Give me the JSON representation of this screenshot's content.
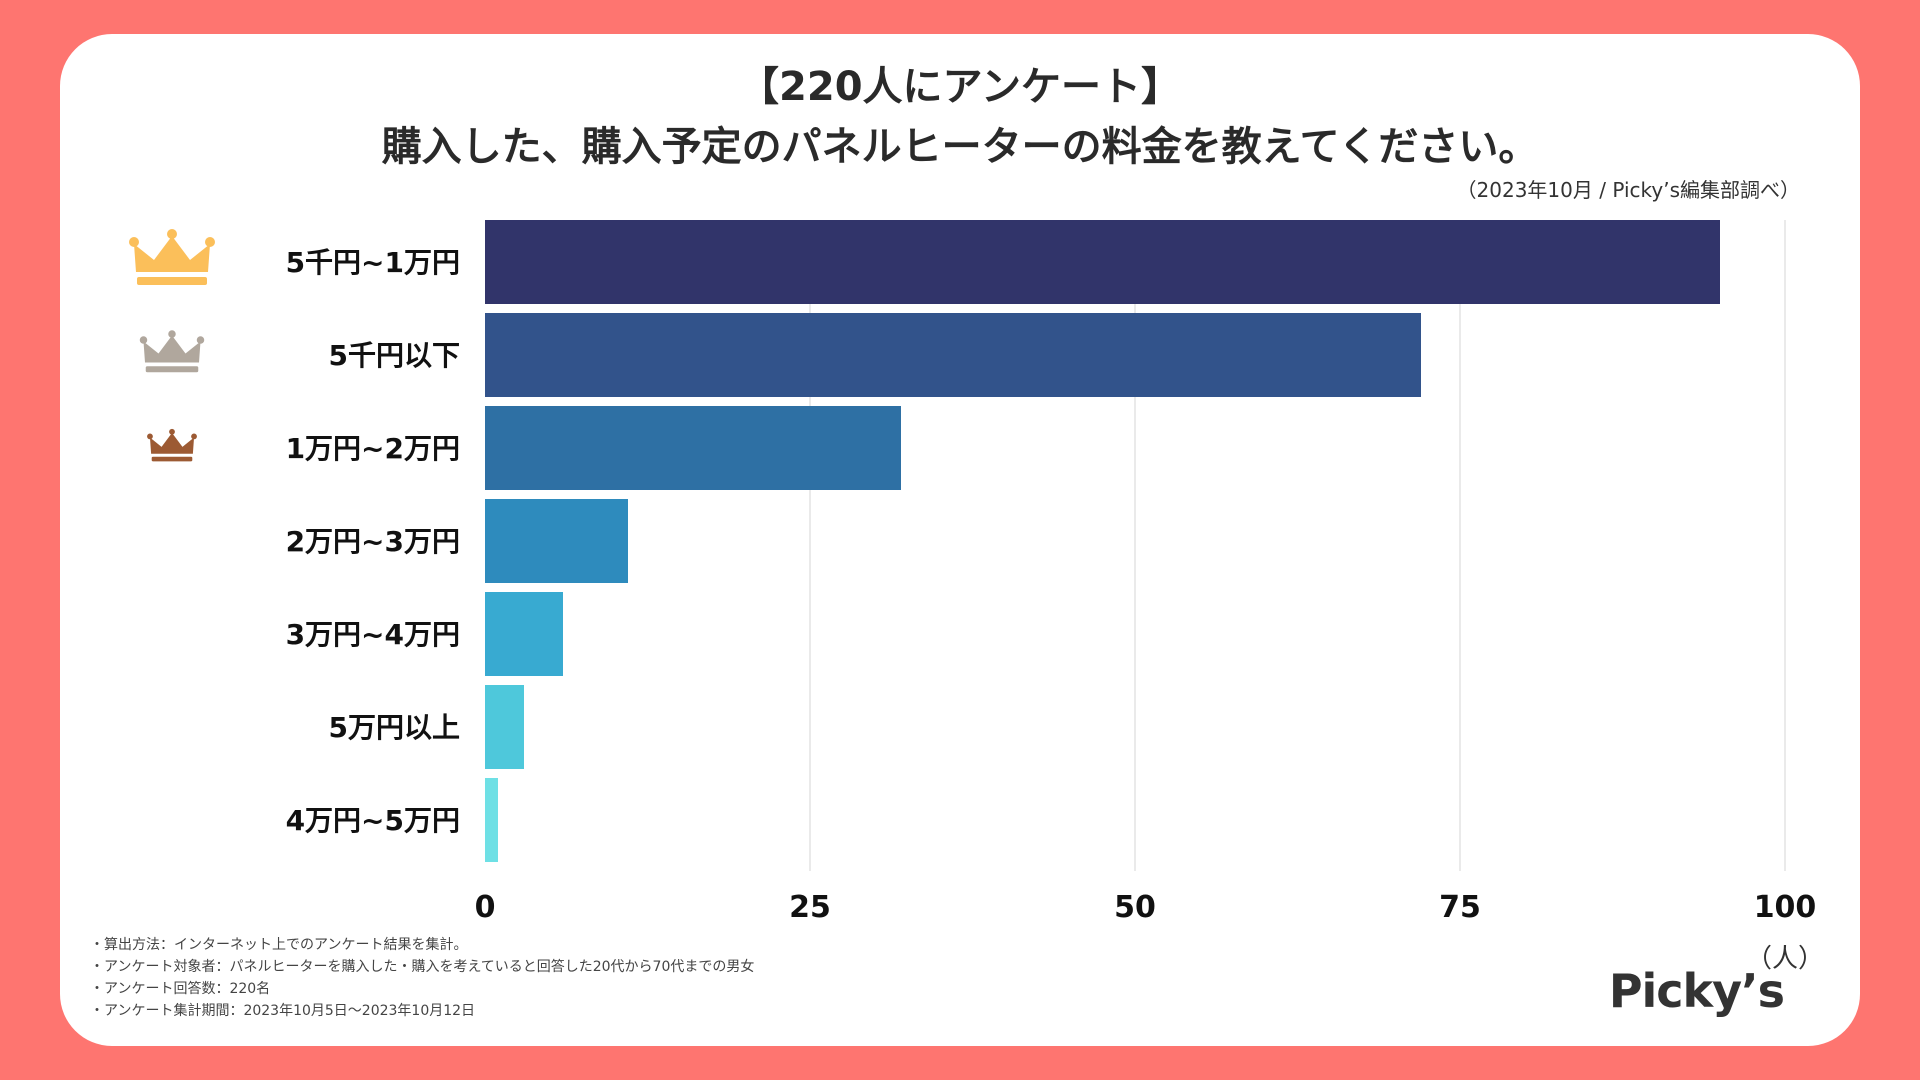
{
  "header": {
    "title_line1": "【220人にアンケート】",
    "title_line2": "購入した、購入予定のパネルヒーターの料金を教えてください。",
    "source": "（2023年10月 / Picky’s編集部調べ）"
  },
  "chart_data": {
    "type": "bar",
    "orientation": "horizontal",
    "categories": [
      "5千円~1万円",
      "5千円以下",
      "1万円~2万円",
      "2万円~3万円",
      "3万円~4万円",
      "5万円以上",
      "4万円~5万円"
    ],
    "values": [
      95,
      72,
      32,
      11,
      6,
      3,
      1
    ],
    "bar_colors": [
      "#31346a",
      "#32538b",
      "#2e70a4",
      "#2e8bbd",
      "#38aad1",
      "#4ec8db",
      "#6ee0e5"
    ],
    "xlim": [
      0,
      100
    ],
    "xticks": [
      0,
      25,
      50,
      75,
      100
    ],
    "xticks_labels": [
      "0",
      "25",
      "50",
      "75",
      "100"
    ],
    "xlabel": "（人）",
    "grid": true,
    "rank_icons": [
      {
        "rank": 1,
        "icon": "gold-crown-icon",
        "color": "#fbbf5a"
      },
      {
        "rank": 2,
        "icon": "silver-crown-icon",
        "color": "#b0a79d"
      },
      {
        "rank": 3,
        "icon": "bronze-crown-icon",
        "color": "#9c5a33"
      }
    ]
  },
  "notes": [
    "・算出方法：インターネット上でのアンケート結果を集計。",
    "・アンケート対象者：パネルヒーターを購入した・購入を考えていると回答した20代から70代までの男女",
    "・アンケート回答数：220名",
    "・アンケート集計期間：2023年10月5日〜2023年10月12日"
  ],
  "brand": {
    "logo_text": "Picky’s"
  }
}
